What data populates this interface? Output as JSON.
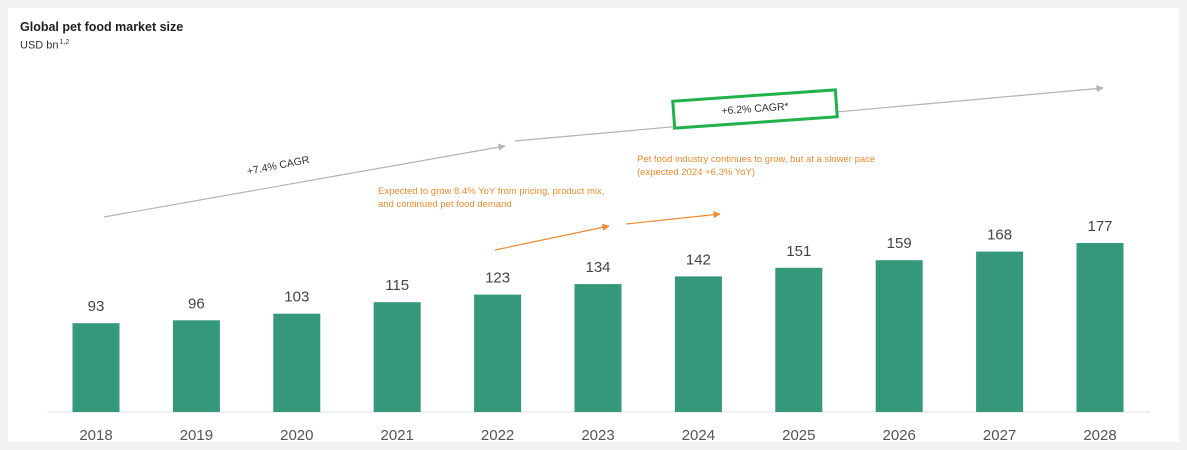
{
  "title": "Global pet food market size",
  "subtitle_main": "USD bn",
  "subtitle_sup": "1,2",
  "annotations": {
    "cagr_past": "+7.4% CAGR",
    "cagr_future": "+6.2% CAGR*",
    "note_2023": "Expected to grow 8.4% YoY from pricing, product mix, and continued pet food demand",
    "note_2024": "Pet food industry continues to grow, but at a slower pace (expected 2024 +6.3% YoY)"
  },
  "colors": {
    "bar": "#35987a",
    "accent_orange": "#f28a2e",
    "cagr_box": "#22b04b",
    "trend_arrow": "#b3b3b3"
  },
  "chart_data": {
    "type": "bar",
    "categories": [
      "2018",
      "2019",
      "2020",
      "2021",
      "2022",
      "2023",
      "2024",
      "2025",
      "2026",
      "2027",
      "2028"
    ],
    "values": [
      93,
      96,
      103,
      115,
      123,
      134,
      142,
      151,
      159,
      168,
      177
    ],
    "title": "Global pet food market size",
    "ylabel": "USD bn",
    "ylim": [
      0,
      177
    ],
    "grid": false,
    "legend": "none"
  }
}
